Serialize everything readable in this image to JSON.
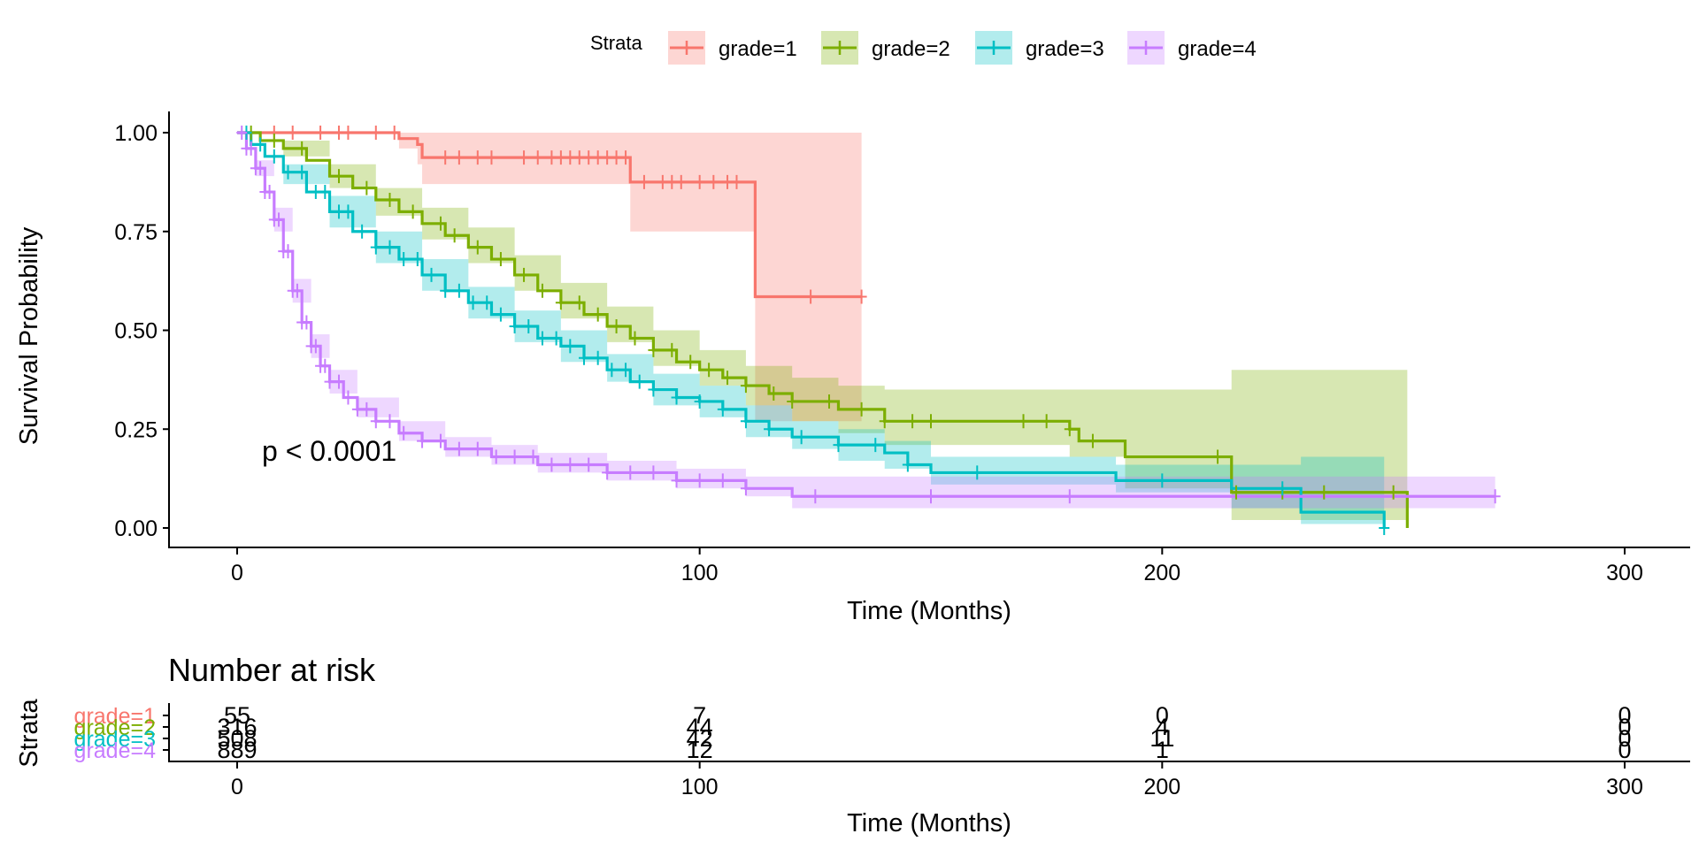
{
  "chart_data": [
    {
      "type": "line",
      "subtype": "kaplan-meier",
      "title": "",
      "xlabel": "Time (Months)",
      "ylabel": "Survival Probability",
      "xlim": [
        -15,
        315
      ],
      "ylim": [
        -0.05,
        1.05
      ],
      "xticks": [
        "0",
        "100",
        "200",
        "300"
      ],
      "yticks": [
        "0.00",
        "0.25",
        "0.50",
        "0.75",
        "1.00"
      ],
      "legend_title": "Strata",
      "legend_position": "top",
      "annotation": "p < 0.0001",
      "series": [
        {
          "name": "grade=1",
          "color": "#F8766D",
          "steps": [
            [
              0,
              1.0
            ],
            [
              35,
              0.985
            ],
            [
              39,
              0.97
            ],
            [
              40,
              0.937
            ],
            [
              85,
              0.875
            ],
            [
              112,
              0.585
            ],
            [
              135,
              0.585
            ]
          ],
          "ci_lower": [
            [
              0,
              1.0
            ],
            [
              35,
              0.96
            ],
            [
              39,
              0.92
            ],
            [
              40,
              0.87
            ],
            [
              85,
              0.75
            ],
            [
              112,
              0.27
            ],
            [
              135,
              0.27
            ]
          ],
          "ci_upper": [
            [
              0,
              1.0
            ],
            [
              35,
              1.0
            ],
            [
              135,
              1.0
            ]
          ],
          "censor_times": [
            8,
            12,
            18,
            22,
            24,
            30,
            34,
            45,
            48,
            52,
            55,
            62,
            65,
            68,
            70,
            72,
            74,
            76,
            78,
            80,
            82,
            84,
            88,
            92,
            94,
            96,
            100,
            103,
            106,
            108,
            124,
            135
          ]
        },
        {
          "name": "grade=2",
          "color": "#7CAE00",
          "steps": [
            [
              0,
              1.0
            ],
            [
              5,
              0.98
            ],
            [
              10,
              0.96
            ],
            [
              15,
              0.93
            ],
            [
              20,
              0.89
            ],
            [
              25,
              0.86
            ],
            [
              30,
              0.83
            ],
            [
              35,
              0.8
            ],
            [
              40,
              0.77
            ],
            [
              45,
              0.74
            ],
            [
              50,
              0.71
            ],
            [
              55,
              0.68
            ],
            [
              60,
              0.64
            ],
            [
              65,
              0.6
            ],
            [
              70,
              0.57
            ],
            [
              75,
              0.54
            ],
            [
              80,
              0.51
            ],
            [
              85,
              0.48
            ],
            [
              90,
              0.45
            ],
            [
              95,
              0.42
            ],
            [
              100,
              0.4
            ],
            [
              105,
              0.38
            ],
            [
              110,
              0.36
            ],
            [
              115,
              0.34
            ],
            [
              120,
              0.32
            ],
            [
              130,
              0.3
            ],
            [
              140,
              0.27
            ],
            [
              180,
              0.25
            ],
            [
              182,
              0.22
            ],
            [
              192,
              0.18
            ],
            [
              215,
              0.09
            ],
            [
              253,
              0.0
            ]
          ],
          "ci_lower": [
            [
              0,
              1.0
            ],
            [
              10,
              0.94
            ],
            [
              20,
              0.86
            ],
            [
              30,
              0.79
            ],
            [
              40,
              0.73
            ],
            [
              50,
              0.67
            ],
            [
              60,
              0.6
            ],
            [
              70,
              0.53
            ],
            [
              80,
              0.47
            ],
            [
              90,
              0.41
            ],
            [
              100,
              0.36
            ],
            [
              110,
              0.31
            ],
            [
              120,
              0.27
            ],
            [
              130,
              0.24
            ],
            [
              140,
              0.21
            ],
            [
              180,
              0.18
            ],
            [
              192,
              0.1
            ],
            [
              215,
              0.02
            ],
            [
              253,
              0.02
            ]
          ],
          "ci_upper": [
            [
              0,
              1.0
            ],
            [
              10,
              0.98
            ],
            [
              20,
              0.92
            ],
            [
              30,
              0.86
            ],
            [
              40,
              0.81
            ],
            [
              50,
              0.76
            ],
            [
              60,
              0.69
            ],
            [
              70,
              0.62
            ],
            [
              80,
              0.56
            ],
            [
              90,
              0.5
            ],
            [
              100,
              0.45
            ],
            [
              110,
              0.41
            ],
            [
              120,
              0.38
            ],
            [
              130,
              0.36
            ],
            [
              140,
              0.35
            ],
            [
              180,
              0.35
            ],
            [
              214,
              0.35
            ],
            [
              215,
              0.4
            ],
            [
              253,
              0.4
            ]
          ],
          "censor_times": [
            3,
            8,
            14,
            22,
            28,
            33,
            38,
            44,
            47,
            52,
            57,
            62,
            66,
            70,
            74,
            78,
            82,
            86,
            90,
            94,
            98,
            102,
            106,
            110,
            116,
            120,
            128,
            135,
            140,
            146,
            150,
            170,
            175,
            180,
            185,
            212,
            216,
            226,
            235,
            250
          ]
        },
        {
          "name": "grade=3",
          "color": "#00BFC4",
          "steps": [
            [
              0,
              1.0
            ],
            [
              3,
              0.97
            ],
            [
              6,
              0.94
            ],
            [
              10,
              0.9
            ],
            [
              15,
              0.85
            ],
            [
              20,
              0.8
            ],
            [
              25,
              0.75
            ],
            [
              30,
              0.71
            ],
            [
              35,
              0.68
            ],
            [
              40,
              0.64
            ],
            [
              45,
              0.6
            ],
            [
              50,
              0.57
            ],
            [
              55,
              0.54
            ],
            [
              60,
              0.51
            ],
            [
              65,
              0.48
            ],
            [
              70,
              0.46
            ],
            [
              75,
              0.43
            ],
            [
              80,
              0.4
            ],
            [
              85,
              0.37
            ],
            [
              90,
              0.35
            ],
            [
              95,
              0.33
            ],
            [
              100,
              0.32
            ],
            [
              105,
              0.3
            ],
            [
              110,
              0.27
            ],
            [
              115,
              0.25
            ],
            [
              120,
              0.23
            ],
            [
              130,
              0.21
            ],
            [
              140,
              0.19
            ],
            [
              145,
              0.16
            ],
            [
              150,
              0.14
            ],
            [
              190,
              0.12
            ],
            [
              215,
              0.1
            ],
            [
              230,
              0.04
            ],
            [
              248,
              0.0
            ]
          ],
          "ci_lower": [
            [
              0,
              1.0
            ],
            [
              10,
              0.87
            ],
            [
              20,
              0.76
            ],
            [
              30,
              0.67
            ],
            [
              40,
              0.6
            ],
            [
              50,
              0.53
            ],
            [
              60,
              0.47
            ],
            [
              70,
              0.42
            ],
            [
              80,
              0.37
            ],
            [
              90,
              0.31
            ],
            [
              100,
              0.28
            ],
            [
              110,
              0.23
            ],
            [
              120,
              0.2
            ],
            [
              130,
              0.17
            ],
            [
              140,
              0.15
            ],
            [
              150,
              0.11
            ],
            [
              190,
              0.09
            ],
            [
              215,
              0.05
            ],
            [
              230,
              0.01
            ],
            [
              248,
              0.01
            ]
          ],
          "ci_upper": [
            [
              0,
              1.0
            ],
            [
              10,
              0.92
            ],
            [
              20,
              0.84
            ],
            [
              30,
              0.75
            ],
            [
              40,
              0.68
            ],
            [
              50,
              0.61
            ],
            [
              60,
              0.55
            ],
            [
              70,
              0.5
            ],
            [
              80,
              0.44
            ],
            [
              90,
              0.39
            ],
            [
              100,
              0.36
            ],
            [
              110,
              0.31
            ],
            [
              120,
              0.27
            ],
            [
              130,
              0.25
            ],
            [
              140,
              0.22
            ],
            [
              150,
              0.18
            ],
            [
              190,
              0.16
            ],
            [
              215,
              0.16
            ],
            [
              230,
              0.18
            ],
            [
              248,
              0.18
            ]
          ],
          "censor_times": [
            2,
            5,
            8,
            11,
            14,
            17,
            19,
            22,
            24,
            27,
            30,
            33,
            36,
            39,
            42,
            45,
            48,
            51,
            54,
            57,
            60,
            63,
            66,
            69,
            72,
            75,
            78,
            81,
            84,
            87,
            90,
            95,
            100,
            105,
            110,
            115,
            122,
            130,
            138,
            145,
            160,
            200,
            226,
            248
          ]
        },
        {
          "name": "grade=4",
          "color": "#C77CFF",
          "steps": [
            [
              0,
              1.0
            ],
            [
              2,
              0.96
            ],
            [
              4,
              0.91
            ],
            [
              6,
              0.85
            ],
            [
              8,
              0.78
            ],
            [
              10,
              0.7
            ],
            [
              12,
              0.6
            ],
            [
              14,
              0.52
            ],
            [
              16,
              0.46
            ],
            [
              18,
              0.41
            ],
            [
              20,
              0.37
            ],
            [
              23,
              0.33
            ],
            [
              26,
              0.3
            ],
            [
              30,
              0.27
            ],
            [
              35,
              0.24
            ],
            [
              40,
              0.22
            ],
            [
              45,
              0.2
            ],
            [
              55,
              0.18
            ],
            [
              65,
              0.16
            ],
            [
              80,
              0.14
            ],
            [
              95,
              0.12
            ],
            [
              110,
              0.1
            ],
            [
              120,
              0.08
            ],
            [
              272,
              0.08
            ]
          ],
          "ci_lower": [
            [
              0,
              1.0
            ],
            [
              4,
              0.89
            ],
            [
              8,
              0.75
            ],
            [
              12,
              0.57
            ],
            [
              16,
              0.43
            ],
            [
              20,
              0.34
            ],
            [
              26,
              0.28
            ],
            [
              35,
              0.22
            ],
            [
              45,
              0.18
            ],
            [
              55,
              0.16
            ],
            [
              65,
              0.14
            ],
            [
              80,
              0.12
            ],
            [
              95,
              0.1
            ],
            [
              110,
              0.08
            ],
            [
              120,
              0.05
            ],
            [
              272,
              0.05
            ]
          ],
          "ci_upper": [
            [
              0,
              1.0
            ],
            [
              4,
              0.93
            ],
            [
              8,
              0.81
            ],
            [
              12,
              0.63
            ],
            [
              16,
              0.49
            ],
            [
              20,
              0.4
            ],
            [
              26,
              0.33
            ],
            [
              35,
              0.27
            ],
            [
              45,
              0.23
            ],
            [
              55,
              0.21
            ],
            [
              65,
              0.19
            ],
            [
              80,
              0.17
            ],
            [
              95,
              0.15
            ],
            [
              110,
              0.13
            ],
            [
              120,
              0.13
            ],
            [
              272,
              0.13
            ]
          ],
          "censor_times": [
            1,
            2,
            3,
            4,
            5,
            6,
            7,
            8,
            9,
            10,
            11,
            12,
            13,
            14,
            15,
            16,
            17,
            18,
            19,
            20,
            22,
            24,
            26,
            28,
            30,
            33,
            36,
            40,
            44,
            48,
            52,
            56,
            60,
            64,
            68,
            72,
            76,
            80,
            85,
            90,
            95,
            100,
            105,
            110,
            125,
            150,
            180,
            272
          ]
        }
      ]
    },
    {
      "type": "table",
      "title": "Number at risk",
      "xlabel": "Time (Months)",
      "ylabel": "Strata",
      "xticks": [
        "0",
        "100",
        "200",
        "300"
      ],
      "times": [
        0,
        100,
        200,
        300
      ],
      "rows": [
        {
          "name": "grade=1",
          "color": "#F8766D",
          "values": [
            "55",
            "7",
            "0",
            "0"
          ]
        },
        {
          "name": "grade=2",
          "color": "#7CAE00",
          "values": [
            "316",
            "44",
            "4",
            "0"
          ]
        },
        {
          "name": "grade=3",
          "color": "#00BFC4",
          "values": [
            "508",
            "42",
            "11",
            "0"
          ]
        },
        {
          "name": "grade=4",
          "color": "#C77CFF",
          "values": [
            "889",
            "12",
            "1",
            "0"
          ]
        }
      ]
    }
  ]
}
